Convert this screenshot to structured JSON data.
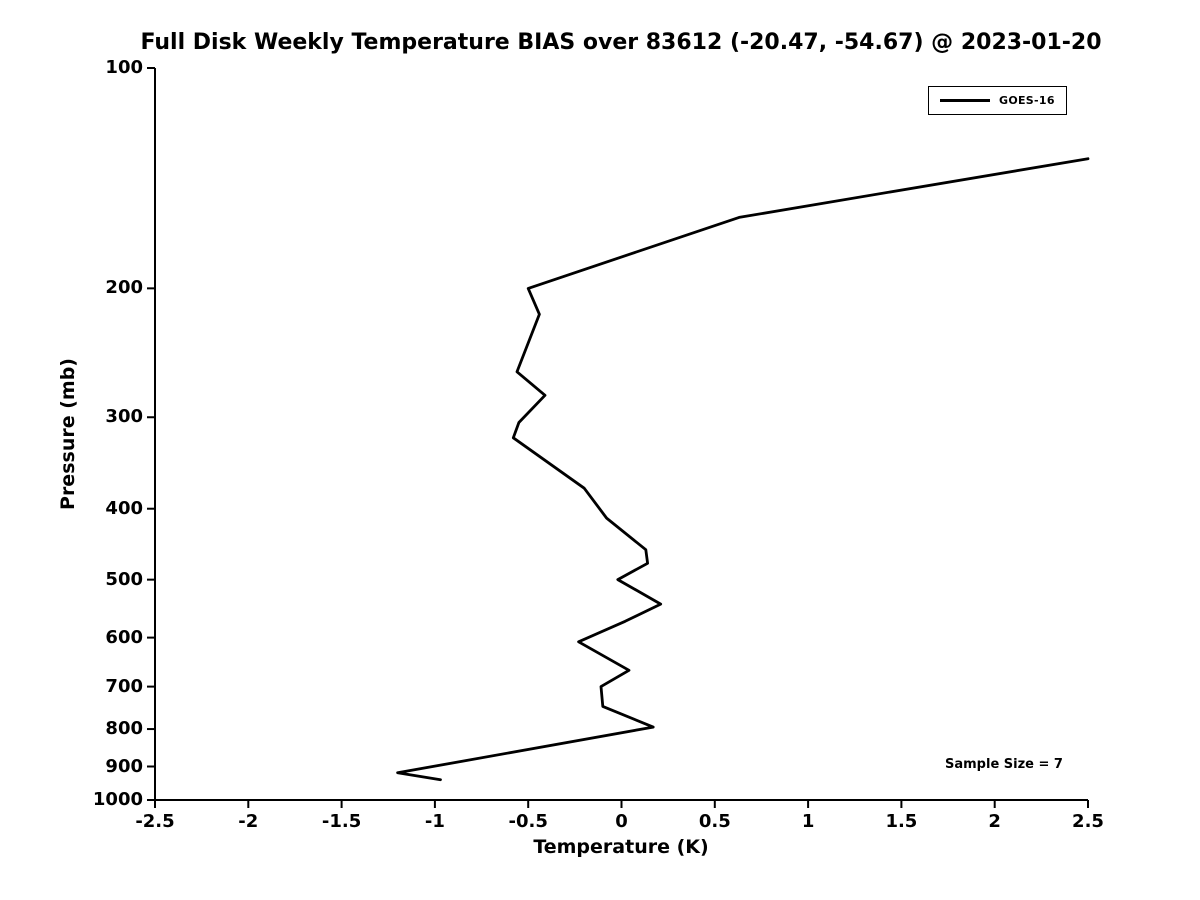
{
  "title": "Full Disk Weekly Temperature BIAS over 83612 (-20.47, -54.67) @ 2023-01-20",
  "legend": {
    "series_label": "GOES-16"
  },
  "annotation": {
    "sample_size_text": "Sample Size = 7"
  },
  "chart_data": {
    "type": "line",
    "title": "Full Disk Weekly Temperature BIAS over 83612 (-20.47, -54.67) @ 2023-01-20",
    "xlabel": "Temperature (K)",
    "ylabel": "Pressure (mb)",
    "xlim": [
      -2.5,
      2.5
    ],
    "ylim_bottom_to_top": [
      1000,
      100
    ],
    "yscale": "log",
    "y_inverted": true,
    "grid": false,
    "legend_position": "top-right",
    "line_color": "#000000",
    "x_ticks": [
      -2.5,
      -2,
      -1.5,
      -1,
      -0.5,
      0,
      0.5,
      1,
      1.5,
      2,
      2.5
    ],
    "x_tick_labels": [
      "-2.5",
      "-2",
      "-1.5",
      "-1",
      "-0.5",
      "0",
      "0.5",
      "1",
      "1.5",
      "2",
      "2.5"
    ],
    "y_ticks": [
      100,
      200,
      300,
      400,
      500,
      600,
      700,
      800,
      900,
      1000
    ],
    "y_tick_labels": [
      "100",
      "200",
      "300",
      "400",
      "500",
      "600",
      "700",
      "800",
      "900",
      "1000"
    ],
    "sample_size": 7,
    "series": [
      {
        "name": "GOES-16",
        "color": "#000000",
        "points_temperature_k_pressure_mb": [
          [
            2.5,
            133
          ],
          [
            0.63,
            160
          ],
          [
            -0.5,
            200
          ],
          [
            -0.44,
            217
          ],
          [
            -0.56,
            260
          ],
          [
            -0.41,
            280
          ],
          [
            -0.55,
            305
          ],
          [
            -0.58,
            320
          ],
          [
            -0.2,
            375
          ],
          [
            -0.08,
            412
          ],
          [
            0.13,
            455
          ],
          [
            0.14,
            475
          ],
          [
            -0.02,
            500
          ],
          [
            0.21,
            540
          ],
          [
            0.02,
            570
          ],
          [
            -0.23,
            608
          ],
          [
            0.04,
            665
          ],
          [
            -0.11,
            700
          ],
          [
            -0.1,
            745
          ],
          [
            0.17,
            795
          ],
          [
            -1.2,
            918
          ],
          [
            -0.97,
            938
          ]
        ]
      }
    ]
  }
}
